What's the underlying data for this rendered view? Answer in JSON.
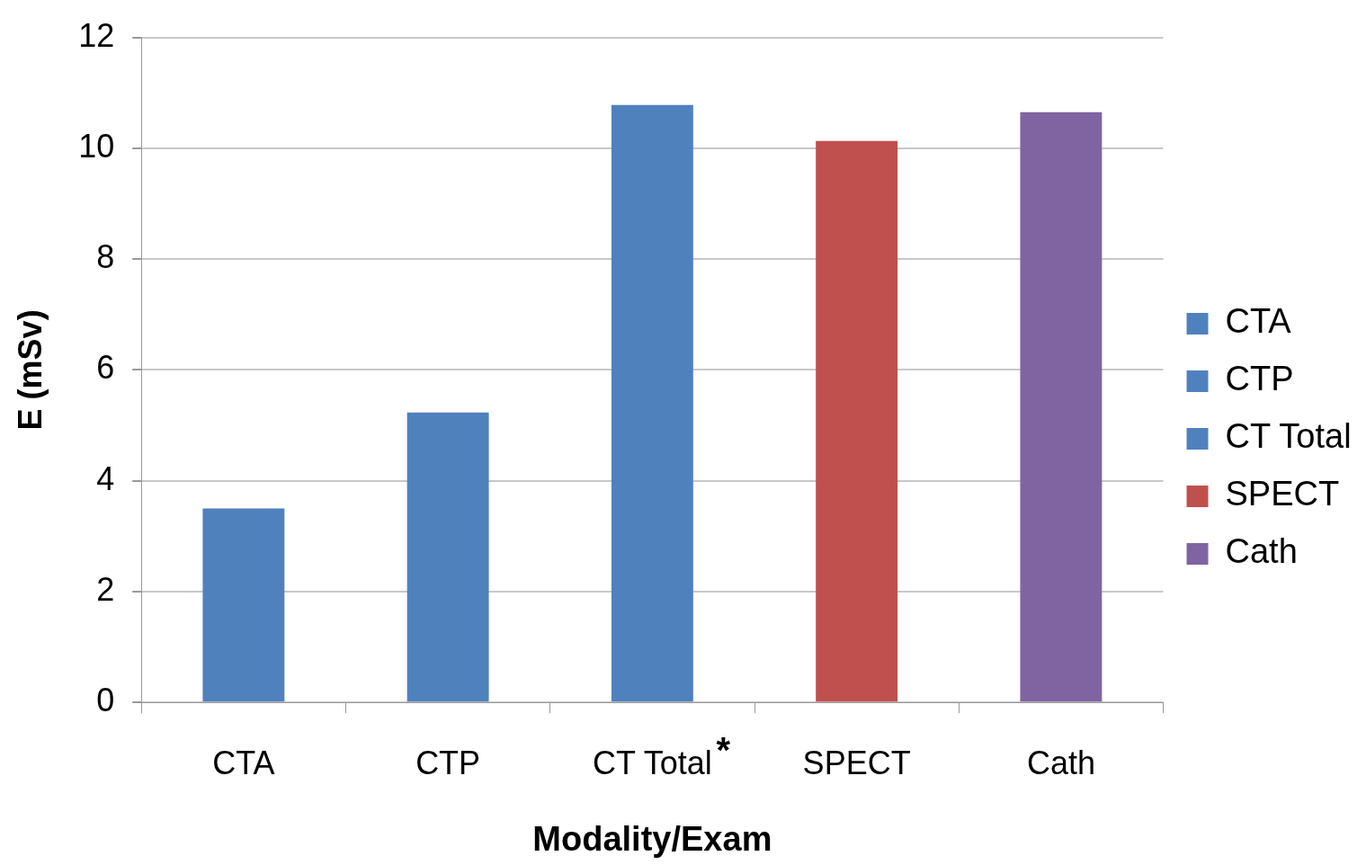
{
  "chart_data": {
    "type": "bar",
    "xlabel": "Modality/Exam",
    "ylabel": "E (mSv)",
    "categories": [
      "CTA",
      "CTP",
      "CT Total",
      "SPECT",
      "Cath"
    ],
    "series": [
      {
        "name": "CTA",
        "color": "#4f81bd",
        "values": [
          3.5,
          null,
          null,
          null,
          null
        ]
      },
      {
        "name": "CTP",
        "color": "#4f81bd",
        "values": [
          null,
          5.23,
          null,
          null,
          null
        ]
      },
      {
        "name": "CT Total",
        "color": "#4f81bd",
        "values": [
          null,
          null,
          10.78,
          null,
          null
        ]
      },
      {
        "name": "SPECT",
        "color": "#c0504d",
        "values": [
          null,
          null,
          null,
          10.13,
          null
        ]
      },
      {
        "name": "Cath",
        "color": "#8064a2",
        "values": [
          null,
          null,
          null,
          null,
          10.65
        ]
      }
    ],
    "ylim": [
      0,
      12
    ],
    "yticks": [
      0,
      2,
      4,
      6,
      8,
      10,
      12
    ],
    "grid": "y",
    "legend": "right",
    "annotations": [
      "*"
    ]
  }
}
